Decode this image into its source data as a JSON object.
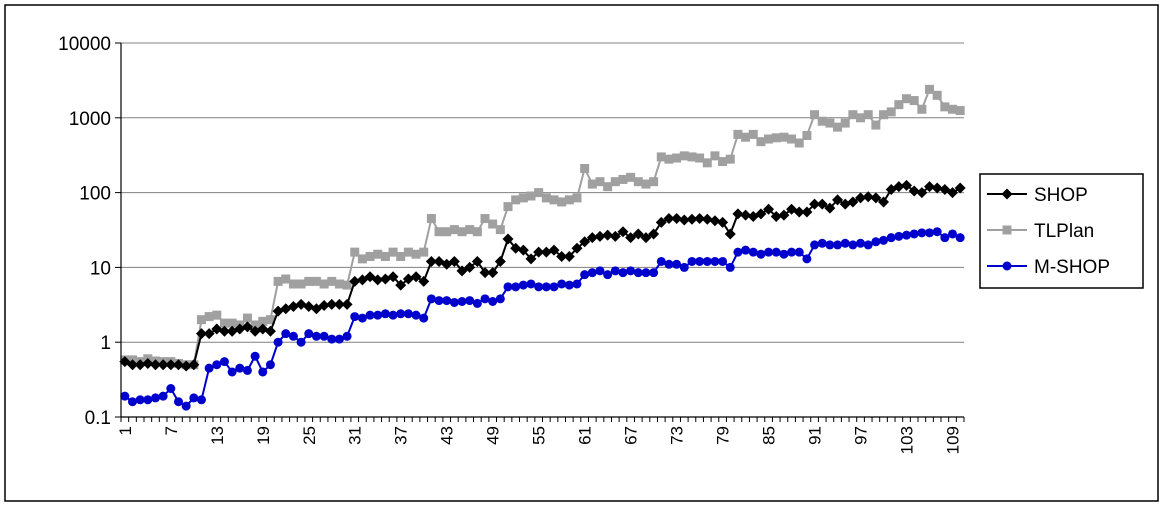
{
  "chart_data": {
    "type": "line",
    "title": "",
    "xlabel": "",
    "ylabel": "",
    "y_scale": "log",
    "ylim": [
      0.1,
      10000
    ],
    "y_ticks": [
      "0.1",
      "1",
      "10",
      "100",
      "1000",
      "10000"
    ],
    "x_tick_labels": [
      "1",
      "7",
      "13",
      "19",
      "25",
      "31",
      "37",
      "43",
      "49",
      "55",
      "61",
      "67",
      "73",
      "79",
      "85",
      "91",
      "97",
      "103",
      "109"
    ],
    "x": [
      1,
      2,
      3,
      4,
      5,
      6,
      7,
      8,
      9,
      10,
      11,
      12,
      13,
      14,
      15,
      16,
      17,
      18,
      19,
      20,
      21,
      22,
      23,
      24,
      25,
      26,
      27,
      28,
      29,
      30,
      31,
      32,
      33,
      34,
      35,
      36,
      37,
      38,
      39,
      40,
      41,
      42,
      43,
      44,
      45,
      46,
      47,
      48,
      49,
      50,
      51,
      52,
      53,
      54,
      55,
      56,
      57,
      58,
      59,
      60,
      61,
      62,
      63,
      64,
      65,
      66,
      67,
      68,
      69,
      70,
      71,
      72,
      73,
      74,
      75,
      76,
      77,
      78,
      79,
      80,
      81,
      82,
      83,
      84,
      85,
      86,
      87,
      88,
      89,
      90,
      91,
      92,
      93,
      94,
      95,
      96,
      97,
      98,
      99,
      100,
      101,
      102,
      103,
      104,
      105,
      106,
      107,
      108,
      109,
      110
    ],
    "grid": "horizontal",
    "legend_position": "right",
    "series": [
      {
        "name": "SHOP",
        "color": "#000000",
        "marker": "diamond",
        "values": [
          0.55,
          0.5,
          0.5,
          0.52,
          0.5,
          0.5,
          0.5,
          0.5,
          0.48,
          0.5,
          1.3,
          1.3,
          1.5,
          1.4,
          1.4,
          1.5,
          1.6,
          1.4,
          1.5,
          1.4,
          2.6,
          2.8,
          3.0,
          3.2,
          3.0,
          2.8,
          3.1,
          3.2,
          3.2,
          3.2,
          6.5,
          6.8,
          7.5,
          6.8,
          7.0,
          7.5,
          5.8,
          7.0,
          7.5,
          6.5,
          12,
          12,
          11,
          12,
          9,
          10,
          12,
          8.5,
          8.5,
          12,
          24,
          18,
          17,
          13,
          16,
          16,
          17,
          14,
          14,
          18,
          22,
          25,
          26,
          27,
          26,
          30,
          25,
          28,
          25,
          28,
          40,
          45,
          45,
          43,
          44,
          45,
          44,
          42,
          40,
          28,
          52,
          50,
          48,
          52,
          60,
          48,
          50,
          60,
          55,
          55,
          70,
          70,
          62,
          80,
          70,
          75,
          85,
          88,
          85,
          75,
          110,
          120,
          125,
          105,
          100,
          120,
          115,
          110,
          100,
          115
        ]
      },
      {
        "name": "TLPlan",
        "color": "#a0a0a0",
        "marker": "square",
        "values": [
          0.58,
          0.58,
          0.55,
          0.6,
          0.56,
          0.55,
          0.55,
          0.52,
          0.5,
          0.5,
          2.0,
          2.2,
          2.3,
          1.8,
          1.8,
          1.7,
          2.1,
          1.7,
          1.9,
          2.0,
          6.5,
          7.0,
          6.0,
          6.0,
          6.5,
          6.5,
          6.0,
          6.5,
          6.0,
          5.8,
          16,
          13,
          14,
          15,
          14,
          16,
          14,
          16,
          15,
          16,
          45,
          30,
          30,
          32,
          30,
          32,
          30,
          45,
          38,
          32,
          65,
          80,
          85,
          90,
          100,
          85,
          80,
          75,
          80,
          85,
          210,
          130,
          140,
          120,
          140,
          150,
          160,
          140,
          130,
          140,
          300,
          280,
          290,
          310,
          300,
          290,
          250,
          310,
          260,
          280,
          600,
          550,
          600,
          480,
          520,
          540,
          550,
          520,
          460,
          580,
          1100,
          900,
          850,
          750,
          850,
          1100,
          1000,
          1100,
          800,
          1100,
          1200,
          1500,
          1800,
          1700,
          1300,
          2400,
          2000,
          1400,
          1300,
          1250
        ]
      },
      {
        "name": "M-SHOP",
        "color": "#0000cc",
        "marker": "circle",
        "values": [
          0.19,
          0.16,
          0.17,
          0.17,
          0.18,
          0.19,
          0.24,
          0.16,
          0.14,
          0.18,
          0.17,
          0.45,
          0.5,
          0.55,
          0.4,
          0.45,
          0.42,
          0.65,
          0.4,
          0.5,
          1.0,
          1.3,
          1.2,
          1.0,
          1.3,
          1.2,
          1.2,
          1.1,
          1.1,
          1.2,
          2.2,
          2.1,
          2.3,
          2.3,
          2.4,
          2.3,
          2.4,
          2.4,
          2.3,
          2.1,
          3.8,
          3.6,
          3.6,
          3.4,
          3.5,
          3.6,
          3.3,
          3.8,
          3.5,
          3.8,
          5.5,
          5.5,
          5.8,
          6.0,
          5.5,
          5.5,
          5.5,
          6.0,
          5.8,
          6.0,
          8.0,
          8.5,
          9.0,
          8.0,
          9.0,
          8.5,
          9.0,
          8.5,
          8.5,
          8.5,
          12,
          11,
          11,
          10,
          12,
          12,
          12,
          12,
          12,
          10,
          16,
          17,
          16,
          15,
          16,
          16,
          15,
          16,
          16,
          13,
          20,
          21,
          20,
          20,
          21,
          20,
          21,
          20,
          22,
          23,
          25,
          26,
          27,
          28,
          29,
          29,
          30,
          25,
          28,
          25
        ]
      }
    ]
  }
}
